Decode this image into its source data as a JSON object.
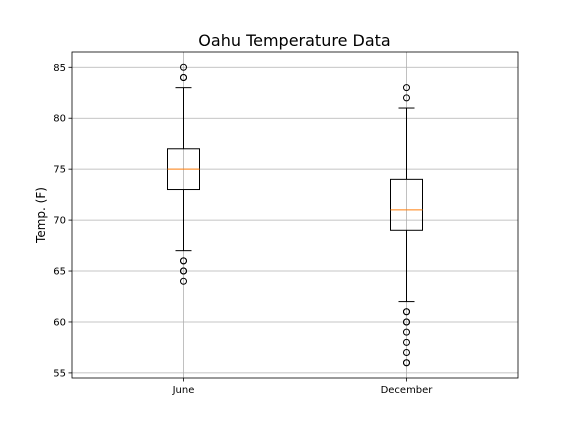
{
  "chart_data": {
    "type": "box",
    "title": "Oahu Temperature Data",
    "xlabel": "",
    "ylabel": "Temp. (F)",
    "ylim": [
      54.5,
      86.5
    ],
    "yticks": [
      55,
      60,
      65,
      70,
      75,
      80,
      85
    ],
    "grid": true,
    "categories": [
      "June",
      "December"
    ],
    "boxes": [
      {
        "label": "June",
        "whisker_low": 67,
        "q1": 73,
        "median": 75,
        "q3": 77,
        "whisker_high": 83,
        "outliers": [
          64,
          65,
          65,
          66,
          66,
          84,
          84,
          85
        ]
      },
      {
        "label": "December",
        "whisker_low": 62,
        "q1": 69,
        "median": 71,
        "q3": 74,
        "whisker_high": 81,
        "outliers": [
          56,
          56,
          57,
          58,
          59,
          60,
          60,
          61,
          61,
          82,
          83
        ]
      }
    ],
    "colors": {
      "median": "#ff7f0e",
      "box": "#000000",
      "grid": "#b0b0b0"
    }
  }
}
